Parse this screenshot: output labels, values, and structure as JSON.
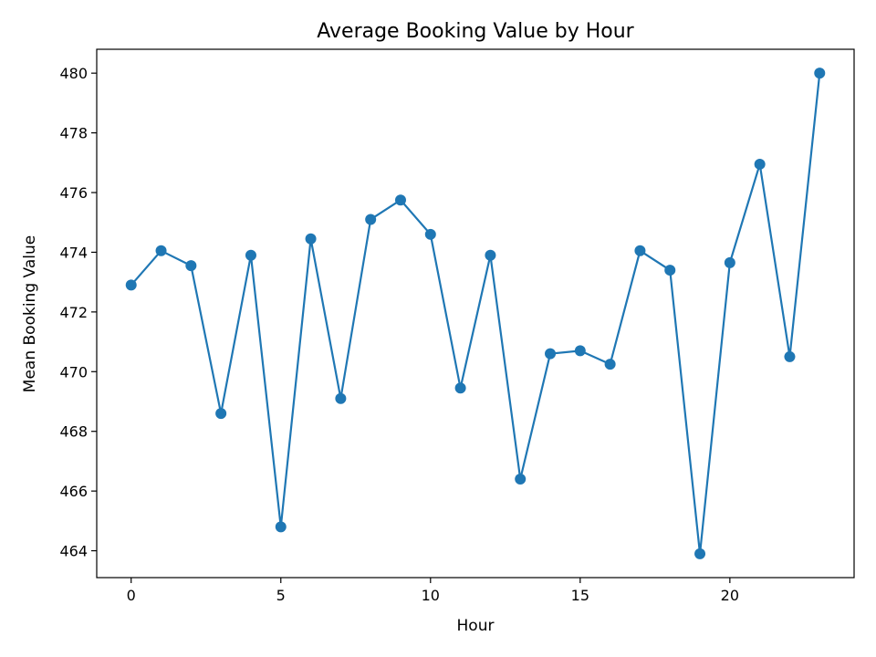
{
  "chart_data": {
    "type": "line",
    "title": "Average Booking Value by Hour",
    "xlabel": "Hour",
    "ylabel": "Mean Booking Value",
    "xlim": [
      -1.15,
      24.15
    ],
    "ylim": [
      463.1,
      480.8
    ],
    "xticks": [
      0,
      5,
      10,
      15,
      20
    ],
    "yticks": [
      464,
      466,
      468,
      470,
      472,
      474,
      476,
      478,
      480
    ],
    "grid": false,
    "color": "#1f77b4",
    "series": [
      {
        "x": [
          0,
          1,
          2,
          3,
          4,
          5,
          6,
          7,
          8,
          9,
          10,
          11,
          12,
          13,
          14,
          15,
          16,
          17,
          18,
          19,
          20,
          21,
          22,
          23
        ],
        "values": [
          472.9,
          474.05,
          473.55,
          468.6,
          473.9,
          464.8,
          474.45,
          469.1,
          475.1,
          475.75,
          474.6,
          469.45,
          473.9,
          466.4,
          470.6,
          470.7,
          470.25,
          474.05,
          473.4,
          463.9,
          473.65,
          476.95,
          470.5,
          480.0
        ]
      }
    ]
  }
}
